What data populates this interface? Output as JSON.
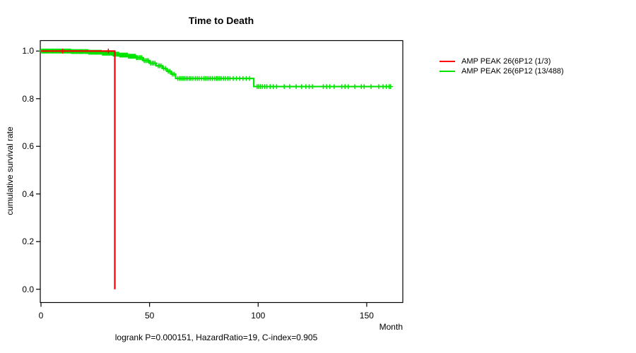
{
  "chart_data": {
    "type": "line",
    "step": true,
    "chart_kind": "kaplan-meier-survival",
    "title": "Time to Death",
    "xlabel": "Month",
    "ylabel": "cumulative survival rate",
    "footnote": "logrank P=0.000151, HazardRatio=19, C-index=0.905",
    "xlim": [
      0,
      167
    ],
    "ylim": [
      0,
      1.045
    ],
    "grid": false,
    "legend_position": "right-outside",
    "x_ticks": [
      0,
      50,
      100,
      150
    ],
    "x_tick_labels": [
      "0",
      "50",
      "100",
      "150"
    ],
    "y_ticks": [
      1.0,
      0.8,
      0.6,
      0.4,
      0.2,
      0.0
    ],
    "y_tick_labels": [
      "1.0",
      "0.8",
      "0.6",
      "0.4",
      "0.2",
      "0.0"
    ],
    "series": [
      {
        "name": "AMP PEAK 26(6P12 (1/3)",
        "color": "#FF0000",
        "end_month": 34,
        "steps": [
          [
            0,
            1.0
          ],
          [
            34,
            0.0
          ]
        ],
        "censor_months": [
          10,
          31
        ]
      },
      {
        "name": "AMP PEAK 26(6P12 (13/488)",
        "color": "#00E400",
        "end_month": 161,
        "steps": [
          [
            0,
            1.0
          ],
          [
            14,
            0.998
          ],
          [
            22,
            0.995
          ],
          [
            28,
            0.991
          ],
          [
            33,
            0.987
          ],
          [
            36,
            0.983
          ],
          [
            40,
            0.978
          ],
          [
            44,
            0.972
          ],
          [
            47,
            0.96
          ],
          [
            50,
            0.949
          ],
          [
            53,
            0.938
          ],
          [
            56,
            0.927
          ],
          [
            58,
            0.915
          ],
          [
            60,
            0.903
          ],
          [
            62,
            0.885
          ],
          [
            98,
            0.851
          ]
        ],
        "censor_months": [
          0.3,
          0.8,
          1.2,
          1.7,
          2.1,
          2.6,
          3,
          3.4,
          3.9,
          4.3,
          4.8,
          5.2,
          5.7,
          6.1,
          6.6,
          7,
          7.4,
          7.9,
          8.3,
          8.8,
          9.2,
          9.7,
          10.1,
          10.5,
          11,
          11.4,
          11.9,
          12.3,
          12.8,
          13.2,
          13.6,
          14.1,
          14.5,
          15,
          15.4,
          15.9,
          16.3,
          16.7,
          17.2,
          17.6,
          18.1,
          18.5,
          19,
          19.4,
          19.8,
          20.3,
          20.7,
          21.2,
          21.6,
          22,
          22.5,
          23,
          23.4,
          23.8,
          24.3,
          24.7,
          25.2,
          25.6,
          26,
          26.5,
          27,
          27.4,
          27.8,
          28.3,
          28.7,
          29.2,
          29.6,
          30,
          30.5,
          31,
          31.4,
          31.8,
          32.3,
          32.7,
          33.2,
          33.6,
          34,
          34.5,
          35,
          35.4,
          35.8,
          36.3,
          36.7,
          37.2,
          37.6,
          38,
          38.5,
          39,
          39.4,
          39.8,
          40.3,
          40.8,
          41.2,
          41.7,
          42.1,
          42.6,
          43,
          43.5,
          44,
          44.5,
          45.2,
          45.8,
          46.4,
          47.5,
          48.2,
          48.8,
          49.4,
          50.5,
          51.2,
          51.8,
          52.5,
          54,
          54.6,
          55.3,
          56.5,
          57.3,
          58.6,
          59.3,
          60.5,
          61.2,
          63,
          63.8,
          64.5,
          65.3,
          66,
          66.8,
          67.5,
          68.3,
          69,
          70,
          71,
          72,
          72.8,
          74,
          75,
          75.8,
          76.5,
          77.3,
          78,
          79,
          80,
          80.8,
          81.5,
          82.3,
          83,
          84,
          85,
          86,
          87,
          88.5,
          90,
          91.5,
          93,
          94.5,
          96,
          99.5,
          100.2,
          101,
          102,
          103,
          104,
          105.5,
          107,
          108.5,
          112,
          114.5,
          117.5,
          120,
          122,
          123.5,
          125,
          130,
          131.5,
          133,
          135,
          138.5,
          140,
          141.5,
          144.5,
          147.5,
          148.8,
          152,
          155.5,
          157.5,
          159,
          160.3,
          161
        ]
      }
    ]
  }
}
